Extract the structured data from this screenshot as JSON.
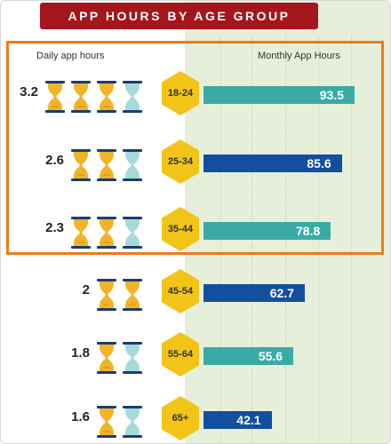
{
  "chart_data": {
    "type": "bar",
    "title": "APP HOURS BY AGE GROUP",
    "left_column_label": "Daily app hours",
    "xlabel": "Monthly App Hours",
    "categories": [
      "18-24",
      "25-34",
      "35-44",
      "45-54",
      "55-64",
      "65+"
    ],
    "daily_hours": [
      3.2,
      2.6,
      2.3,
      2.0,
      1.8,
      1.6
    ],
    "hourglass_counts": {
      "full": [
        3,
        2,
        2,
        2,
        1,
        1
      ],
      "empty": [
        1,
        1,
        1,
        0,
        1,
        1
      ]
    },
    "series": [
      {
        "values": [
          93.5,
          85.6,
          78.8,
          62.7,
          55.6,
          42.1
        ]
      }
    ],
    "xlim": [
      0,
      100
    ],
    "highlighted_categories": [
      "18-24",
      "25-34",
      "35-44"
    ],
    "colors": {
      "title_banner": "#a4161c",
      "bar_teal": "#3aaba4",
      "bar_blue": "#124f9e",
      "bar_order": [
        "teal",
        "blue",
        "teal",
        "blue",
        "teal",
        "blue"
      ],
      "hexagon": "#f2c417",
      "highlight_border": "#f07b17",
      "panel_background": "#e6efd9",
      "hourglass_frame": "#1a3d6e",
      "hourglass_sand": "#f0b42a",
      "hourglass_empty": "#a8d9d9"
    },
    "icons": {
      "hourglass": "hourglass-icon",
      "age_marker": "hexagon-icon"
    }
  }
}
